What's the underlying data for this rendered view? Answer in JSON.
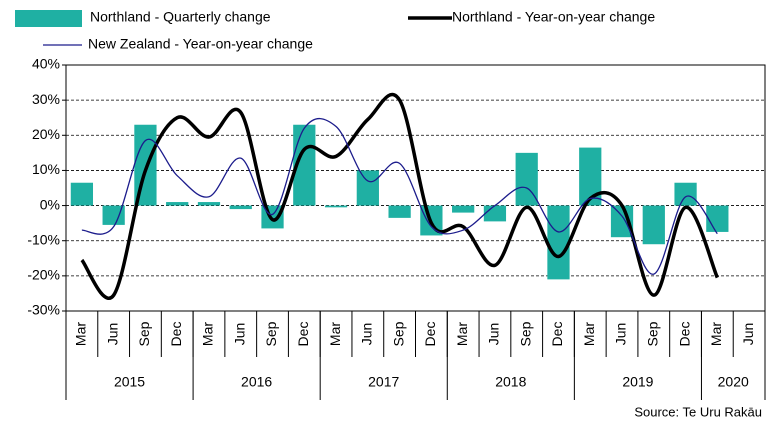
{
  "chart_data": {
    "type": "bar_line_combo",
    "source": "Source: Te Uru Rakāu",
    "categories": [
      "Mar",
      "Jun",
      "Sep",
      "Dec",
      "Mar",
      "Jun",
      "Sep",
      "Dec",
      "Mar",
      "Jun",
      "Sep",
      "Dec",
      "Mar",
      "Jun",
      "Sep",
      "Dec",
      "Mar",
      "Jun",
      "Sep",
      "Dec",
      "Mar",
      "Jun"
    ],
    "groups": [
      {
        "label": "2015",
        "span": 4
      },
      {
        "label": "2016",
        "span": 4
      },
      {
        "label": "2017",
        "span": 4
      },
      {
        "label": "2018",
        "span": 4
      },
      {
        "label": "2019",
        "span": 4
      },
      {
        "label": "2020",
        "span": 2
      }
    ],
    "series": [
      {
        "name": "Northland - Quarterly change",
        "kind": "bar",
        "color": "#1fb0a3",
        "values": [
          6.5,
          -5.5,
          23,
          1,
          1,
          -1,
          -6.5,
          23,
          -0.5,
          10,
          -3.5,
          -8.5,
          -2,
          -4.5,
          15,
          -21,
          16.5,
          -9,
          -11,
          6.5,
          -7.5,
          null
        ]
      },
      {
        "name": "Northland - Year-on-year change",
        "kind": "line",
        "color": "#000000",
        "width": 3.5,
        "values": [
          -15.5,
          -25.5,
          10,
          25,
          19.5,
          26.5,
          -4,
          16,
          14,
          24.5,
          30,
          -5,
          -6,
          -17,
          -0.5,
          -14.5,
          2,
          0,
          -25.5,
          -0.5,
          -20.5,
          null
        ]
      },
      {
        "name": "New Zealand - Year-on-year change",
        "kind": "line",
        "color": "#1c1c8c",
        "width": 1.3,
        "values": [
          -7,
          -6,
          18.5,
          8.5,
          2.5,
          13.5,
          -2.5,
          22,
          22.5,
          7,
          12,
          -6,
          -7,
          0,
          5,
          -7.5,
          2,
          -3,
          -19.5,
          2.5,
          -8,
          null
        ]
      }
    ],
    "ylim": [
      -30,
      40
    ],
    "yticks": [
      {
        "value": -30,
        "label": "-30%"
      },
      {
        "value": -20,
        "label": "-20%"
      },
      {
        "value": -10,
        "label": "-10%"
      },
      {
        "value": 0,
        "label": "0%"
      },
      {
        "value": 10,
        "label": "10%"
      },
      {
        "value": 20,
        "label": "20%"
      },
      {
        "value": 30,
        "label": "30%"
      },
      {
        "value": 40,
        "label": "40%"
      }
    ],
    "grid": true
  }
}
